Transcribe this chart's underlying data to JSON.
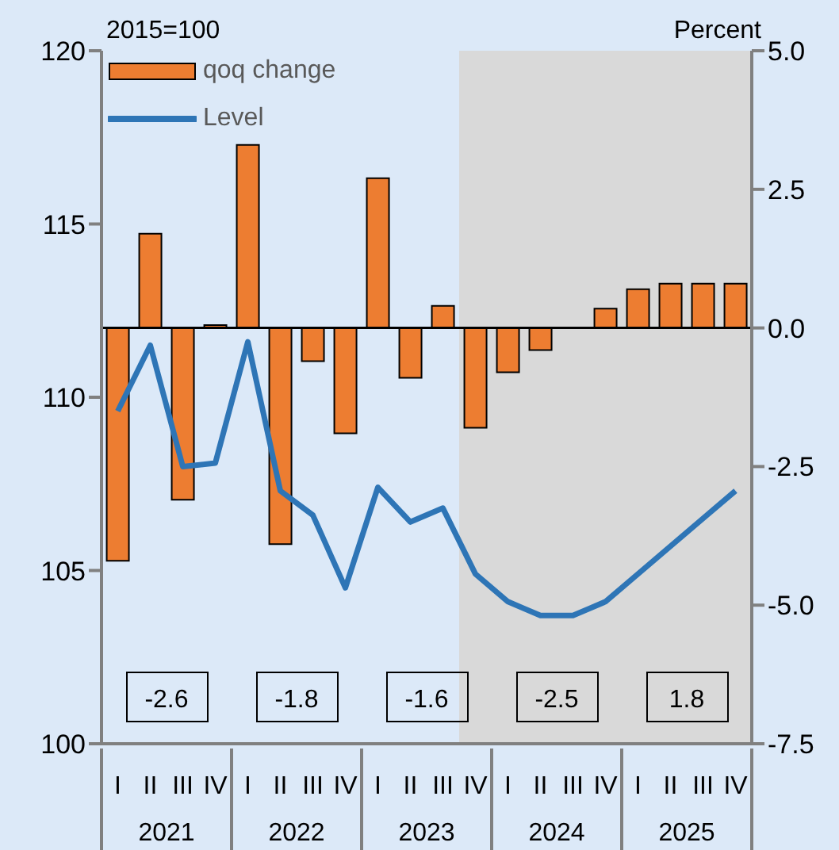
{
  "chart_data": {
    "type": "bar",
    "ylabel": "2015=100",
    "y2label": "Percent",
    "categories": [
      "I",
      "II",
      "III",
      "IV",
      "I",
      "II",
      "III",
      "IV",
      "I",
      "II",
      "III",
      "IV",
      "I",
      "II",
      "III",
      "IV",
      "I",
      "II",
      "III",
      "IV"
    ],
    "series": [
      {
        "name": "qoq change",
        "axis": "y2",
        "color": "#ed7d31",
        "values": [
          -4.2,
          1.7,
          -3.1,
          0.05,
          3.3,
          -3.9,
          -0.6,
          -1.9,
          2.7,
          -0.9,
          0.4,
          -1.8,
          -0.8,
          -0.4,
          0.0,
          0.35,
          0.7,
          0.8,
          0.8,
          0.8
        ]
      },
      {
        "name": "Level",
        "type": "line",
        "color": "#2e75b6",
        "values": [
          109.6,
          111.5,
          108.0,
          108.1,
          111.6,
          107.3,
          106.6,
          104.5,
          107.4,
          106.4,
          106.8,
          104.9,
          104.1,
          103.7,
          103.7,
          104.1,
          104.9,
          105.7,
          106.5,
          107.3
        ]
      }
    ],
    "ylim": [
      100,
      120
    ],
    "yticks": [
      100,
      105,
      110,
      115,
      120
    ],
    "y2lim": [
      -7.5,
      5
    ],
    "y2ticks": [
      {
        "value": -7.5,
        "label": "-7.5"
      },
      {
        "value": -5,
        "label": "-5.0"
      },
      {
        "value": -2.5,
        "label": "-2.5"
      },
      {
        "value": 0,
        "label": "0.0"
      },
      {
        "value": 2.5,
        "label": "2.5"
      },
      {
        "value": 5,
        "label": "5.0"
      }
    ],
    "ref_lines": [
      {
        "axis": "y2",
        "value": 0,
        "color": "#000000"
      }
    ],
    "annotations": [
      "-2.6",
      "-1.8",
      "-1.6",
      "-2.5",
      "1.8",
      "2021",
      "2022",
      "2023",
      "2024",
      "2025"
    ],
    "legend": "top left"
  }
}
